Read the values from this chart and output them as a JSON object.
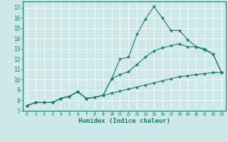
{
  "xlabel": "Humidex (Indice chaleur)",
  "background_color": "#cce8e8",
  "grid_color": "#ffffff",
  "line_color": "#1a7a6e",
  "xlim": [
    -0.5,
    23.5
  ],
  "ylim": [
    7,
    17.6
  ],
  "xticks": [
    0,
    1,
    2,
    3,
    4,
    5,
    6,
    7,
    8,
    9,
    10,
    11,
    12,
    13,
    14,
    15,
    16,
    17,
    18,
    19,
    20,
    21,
    22,
    23
  ],
  "yticks": [
    7,
    8,
    9,
    10,
    11,
    12,
    13,
    14,
    15,
    16,
    17
  ],
  "line1_x": [
    0,
    1,
    2,
    3,
    4,
    5,
    6,
    7,
    8,
    9,
    10,
    11,
    12,
    13,
    14,
    15,
    16,
    17,
    18,
    19,
    20,
    21,
    22,
    23
  ],
  "line1_y": [
    7.5,
    7.8,
    7.8,
    7.8,
    8.2,
    8.4,
    8.85,
    8.2,
    8.3,
    8.5,
    10.1,
    12.0,
    12.2,
    14.4,
    15.9,
    17.1,
    16.0,
    14.8,
    14.8,
    13.9,
    13.2,
    12.9,
    12.5,
    10.7
  ],
  "line2_x": [
    0,
    1,
    2,
    3,
    4,
    5,
    6,
    7,
    8,
    9,
    10,
    11,
    12,
    13,
    14,
    15,
    16,
    17,
    18,
    19,
    20,
    21,
    22,
    23
  ],
  "line2_y": [
    7.5,
    7.8,
    7.8,
    7.8,
    8.2,
    8.4,
    8.85,
    8.2,
    8.3,
    8.5,
    10.1,
    10.5,
    10.8,
    11.5,
    12.2,
    12.8,
    13.1,
    13.3,
    13.5,
    13.2,
    13.2,
    13.0,
    12.5,
    10.7
  ],
  "line3_x": [
    0,
    1,
    2,
    3,
    4,
    5,
    6,
    7,
    8,
    9,
    10,
    11,
    12,
    13,
    14,
    15,
    16,
    17,
    18,
    19,
    20,
    21,
    22,
    23
  ],
  "line3_y": [
    7.5,
    7.8,
    7.8,
    7.8,
    8.2,
    8.4,
    8.85,
    8.2,
    8.3,
    8.5,
    8.7,
    8.9,
    9.1,
    9.3,
    9.5,
    9.7,
    9.9,
    10.1,
    10.3,
    10.4,
    10.5,
    10.6,
    10.7,
    10.7
  ]
}
